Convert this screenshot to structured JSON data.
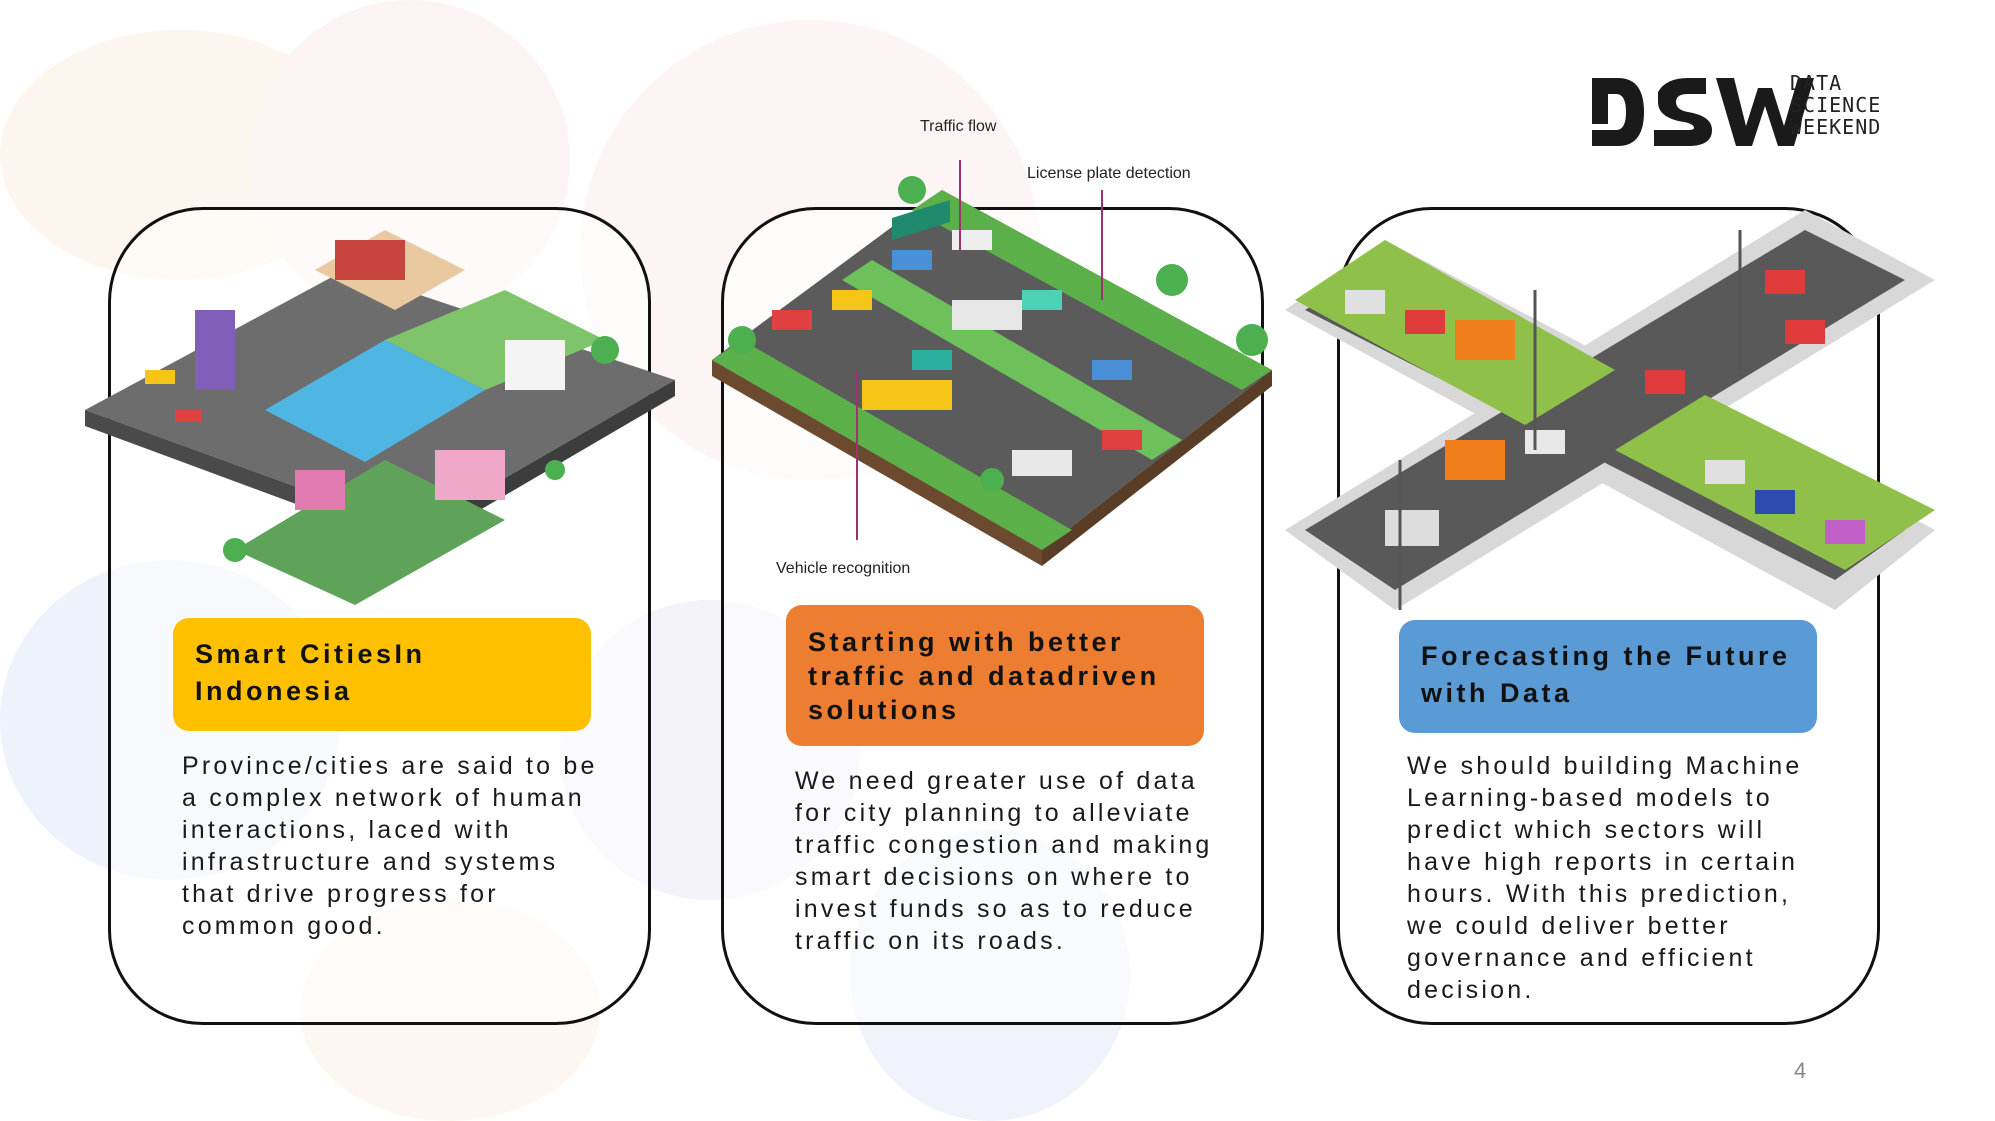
{
  "logo": {
    "mark": "DSW",
    "subtitle_line1": "DATA",
    "subtitle_line2": "SCIENCE",
    "subtitle_line3": "WEEKEND"
  },
  "page_number": "4",
  "colors": {
    "yellow": "#FFC000",
    "orange": "#ED7D31",
    "blue": "#5B9BD5",
    "border": "#111111"
  },
  "cards": [
    {
      "illustration": "isometric-smart-city-icon",
      "title": "Smart CitiesIn Indonesia",
      "body": "Province/cities are said to be a complex network of human interactions, laced with infrastructure and systems that drive progress for common good."
    },
    {
      "illustration": "traffic-highway-icon",
      "callouts": {
        "traffic_flow": "Traffic flow",
        "license_plate": "License plate detection",
        "vehicle_recognition": "Vehicle recognition"
      },
      "title": "Starting with better traffic and datadriven solutions",
      "body": "We need greater use of data for city planning to alleviate traffic congestion and making smart decisions on where to invest funds so as to reduce traffic on its roads."
    },
    {
      "illustration": "intersection-icon",
      "title": "Forecasting the Future with Data",
      "body": "We should building Machine Learning-based models to predict which sectors will have high reports in certain hours. With this prediction, we could deliver better governance and efficient decision."
    }
  ]
}
